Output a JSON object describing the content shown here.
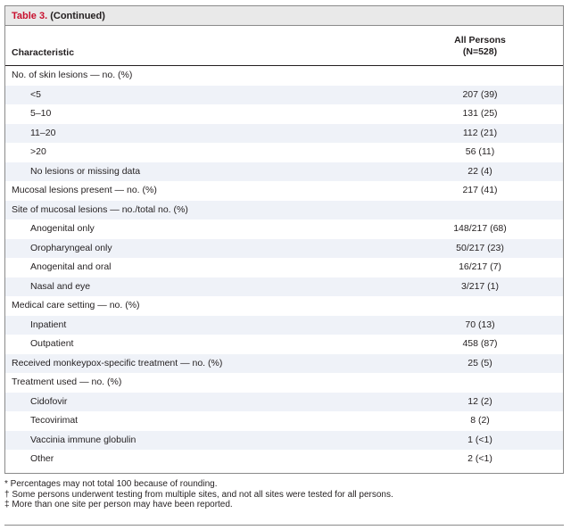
{
  "table": {
    "label": "Table 3.",
    "continued": "(Continued)",
    "col_characteristic": "Characteristic",
    "col_all_line1": "All Persons",
    "col_all_line2": "(N=528)",
    "rows": [
      {
        "label": "No. of skin lesions — no. (%)",
        "value": "",
        "indent": false
      },
      {
        "label": "<5",
        "value": "207 (39)",
        "indent": true
      },
      {
        "label": "5–10",
        "value": "131 (25)",
        "indent": true
      },
      {
        "label": "11–20",
        "value": "112 (21)",
        "indent": true
      },
      {
        "label": ">20",
        "value": "56 (11)",
        "indent": true
      },
      {
        "label": "No lesions or missing data",
        "value": "22 (4)",
        "indent": true
      },
      {
        "label": "Mucosal lesions present — no. (%)",
        "value": "217 (41)",
        "indent": false
      },
      {
        "label": "Site of mucosal lesions — no./total no. (%)",
        "value": "",
        "indent": false
      },
      {
        "label": "Anogenital only",
        "value": "148/217 (68)",
        "indent": true
      },
      {
        "label": "Oropharyngeal only",
        "value": "50/217 (23)",
        "indent": true
      },
      {
        "label": "Anogenital and oral",
        "value": "16/217 (7)",
        "indent": true
      },
      {
        "label": "Nasal and eye",
        "value": "3/217 (1)",
        "indent": true
      },
      {
        "label": "Medical care setting — no. (%)",
        "value": "",
        "indent": false
      },
      {
        "label": "Inpatient",
        "value": "70 (13)",
        "indent": true
      },
      {
        "label": "Outpatient",
        "value": "458 (87)",
        "indent": true
      },
      {
        "label": "Received monkeypox-specific treatment — no. (%)",
        "value": "25 (5)",
        "indent": false
      },
      {
        "label": "Treatment used — no. (%)",
        "value": "",
        "indent": false
      },
      {
        "label": "Cidofovir",
        "value": "12 (2)",
        "indent": true
      },
      {
        "label": "Tecovirimat",
        "value": "8 (2)",
        "indent": true
      },
      {
        "label": "Vaccinia immune globulin",
        "value": "1 (<1)",
        "indent": true
      },
      {
        "label": "Other",
        "value": "2 (<1)",
        "indent": true
      }
    ]
  },
  "footnotes": [
    "* Percentages may not total 100 because of rounding.",
    "† Some persons underwent testing from multiple sites, and not all sites were tested for all persons.",
    "‡ More than one site per person may have been reported."
  ]
}
